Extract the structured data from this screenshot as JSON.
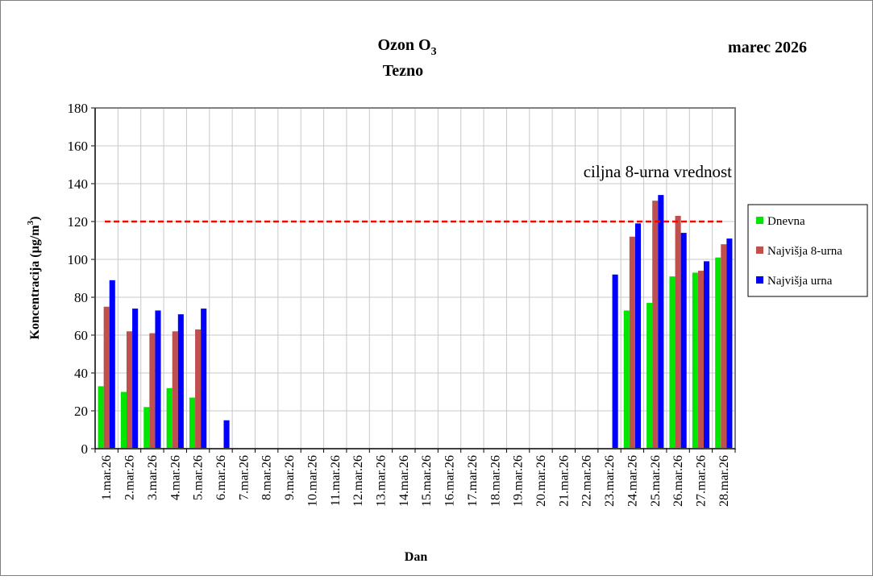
{
  "chart_data": {
    "type": "bar",
    "title": "Ozon O",
    "title_subscript": "3",
    "subtitle": "Tezno",
    "period": "marec 2026",
    "xlabel": "Dan",
    "ylabel_main": "Koncentracija  (µg/m",
    "ylabel_sup": "3",
    "ylabel_end": ")",
    "ylim": [
      0,
      180
    ],
    "yticks": [
      0,
      20,
      40,
      60,
      80,
      100,
      120,
      140,
      160,
      180
    ],
    "grid": "on",
    "legend_position": "right",
    "categories": [
      "1.mar.26",
      "2.mar.26",
      "3.mar.26",
      "4.mar.26",
      "5.mar.26",
      "6.mar.26",
      "7.mar.26",
      "8.mar.26",
      "9.mar.26",
      "10.mar.26",
      "11.mar.26",
      "12.mar.26",
      "13.mar.26",
      "14.mar.26",
      "15.mar.26",
      "16.mar.26",
      "17.mar.26",
      "18.mar.26",
      "19.mar.26",
      "20.mar.26",
      "21.mar.26",
      "22.mar.26",
      "23.mar.26",
      "24.mar.26",
      "25.mar.26",
      "26.mar.26",
      "27.mar.26",
      "28.mar.26"
    ],
    "series": [
      {
        "name": "Dnevna",
        "color": "#00e600",
        "values": [
          33,
          30,
          22,
          32,
          27,
          null,
          null,
          null,
          null,
          null,
          null,
          null,
          null,
          null,
          null,
          null,
          null,
          null,
          null,
          null,
          null,
          null,
          null,
          73,
          77,
          91,
          93,
          101
        ]
      },
      {
        "name": "Najvišja 8-urna",
        "color": "#c0504d",
        "values": [
          75,
          62,
          61,
          62,
          63,
          null,
          null,
          null,
          null,
          null,
          null,
          null,
          null,
          null,
          null,
          null,
          null,
          null,
          null,
          null,
          null,
          null,
          null,
          112,
          131,
          123,
          94,
          108
        ]
      },
      {
        "name": "Najvišja urna",
        "color": "#0000ff",
        "values": [
          89,
          74,
          73,
          71,
          74,
          15,
          null,
          null,
          null,
          null,
          null,
          null,
          null,
          null,
          null,
          null,
          null,
          null,
          null,
          null,
          null,
          null,
          92,
          119,
          134,
          114,
          99,
          111
        ]
      }
    ],
    "target_line": {
      "value": 120,
      "label": "ciljna 8-urna vrednost",
      "color": "#ff0000"
    }
  }
}
